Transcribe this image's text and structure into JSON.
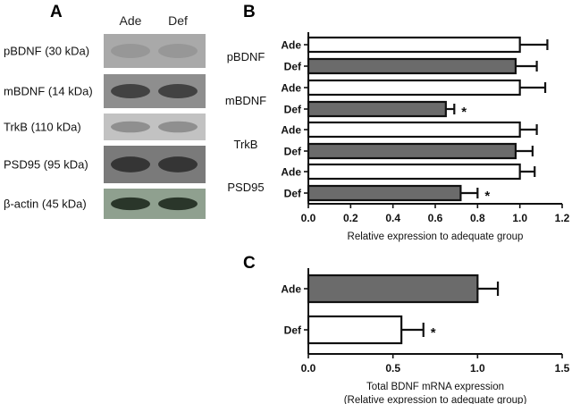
{
  "panel_a": {
    "letter": "A",
    "lanes": [
      "Ade",
      "Def"
    ],
    "bands": [
      {
        "label": "pBDNF (30 kDa)",
        "bg": "#a9a9a9",
        "band": "#959595"
      },
      {
        "label": "mBDNF (14 kDa)",
        "bg": "#8e8e8e",
        "band": "#3a3a3a"
      },
      {
        "label": "TrkB (110 kDa)",
        "bg": "#c2c2c2",
        "band": "#8a8a8a"
      },
      {
        "label": "PSD95 (95 kDa)",
        "bg": "#7a7a7a",
        "band": "#2e2e2e"
      },
      {
        "label": "β-actin (45 kDa)",
        "bg": "#8fa08f",
        "band": "#1f2a1f"
      }
    ]
  },
  "chart_data": [
    {
      "panel": "B",
      "type": "bar",
      "orientation": "horizontal",
      "groups": [
        "pBDNF",
        "mBDNF",
        "TrkB",
        "PSD95"
      ],
      "categories": [
        "Ade",
        "Def",
        "Ade",
        "Def",
        "Ade",
        "Def",
        "Ade",
        "Def"
      ],
      "values": [
        1.0,
        0.98,
        1.0,
        0.65,
        1.0,
        0.98,
        1.0,
        0.72
      ],
      "errors": [
        0.13,
        0.1,
        0.12,
        0.04,
        0.08,
        0.08,
        0.07,
        0.08
      ],
      "fills": [
        "#ffffff",
        "#6b6b6b",
        "#ffffff",
        "#6b6b6b",
        "#ffffff",
        "#6b6b6b",
        "#ffffff",
        "#6b6b6b"
      ],
      "significance": [
        "",
        "",
        "",
        "*",
        "",
        "",
        "",
        "*"
      ],
      "xlim": [
        0,
        1.2
      ],
      "xticks": [
        "0.0",
        "0.2",
        "0.4",
        "0.6",
        "0.8",
        "1.0",
        "1.2"
      ],
      "xlabel": "Relative expression to adequate group"
    },
    {
      "panel": "C",
      "type": "bar",
      "orientation": "horizontal",
      "categories": [
        "Ade",
        "Def"
      ],
      "values": [
        1.0,
        0.55
      ],
      "errors": [
        0.12,
        0.13
      ],
      "fills": [
        "#6b6b6b",
        "#ffffff"
      ],
      "significance": [
        "",
        "*"
      ],
      "xlim": [
        0,
        1.5
      ],
      "xticks": [
        "0.0",
        "0.5",
        "1.0",
        "1.5"
      ],
      "xlabel": [
        "Total BDNF mRNA expression",
        "(Relative expression to adequate group)"
      ]
    }
  ]
}
